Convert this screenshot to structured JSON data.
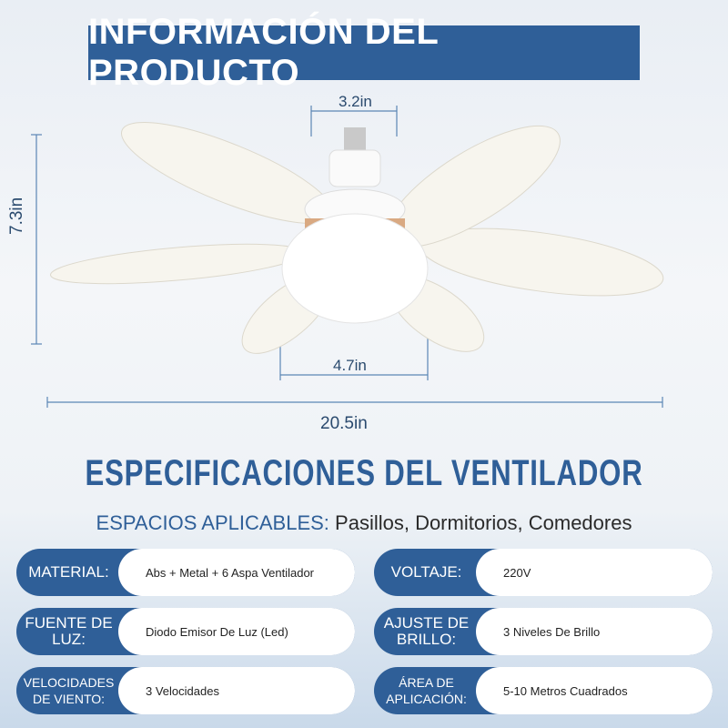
{
  "header": {
    "title": "INFORMACIÓN DEL PRODUCTO"
  },
  "dimensions": {
    "top_width": "3.2in",
    "height": "7.3in",
    "bottom_width": "4.7in",
    "total_width": "20.5in"
  },
  "spec_title": "ESPECIFICACIONES DEL VENTILADOR",
  "spaces": {
    "label": "ESPACIOS APLICABLES:",
    "value": "Pasillos, Dormitorios, Comedores"
  },
  "specs": [
    {
      "label": "MATERIAL:",
      "value": "Abs + Metal + 6 Aspa Ventilador"
    },
    {
      "label": "VOLTAJE:",
      "value": "220V"
    },
    {
      "label": "FUENTE DE LUZ:",
      "value": "Diodo Emisor De Luz (Led)"
    },
    {
      "label": "AJUSTE DE BRILLO:",
      "value": "3 Niveles De Brillo"
    },
    {
      "label": "VELOCIDADES DE VIENTO:",
      "value": "3 Velocidades"
    },
    {
      "label": "ÁREA DE APLICACIÓN:",
      "value": "5-10 Metros Cuadrados"
    }
  ],
  "colors": {
    "brand_blue": "#2f5f98"
  }
}
